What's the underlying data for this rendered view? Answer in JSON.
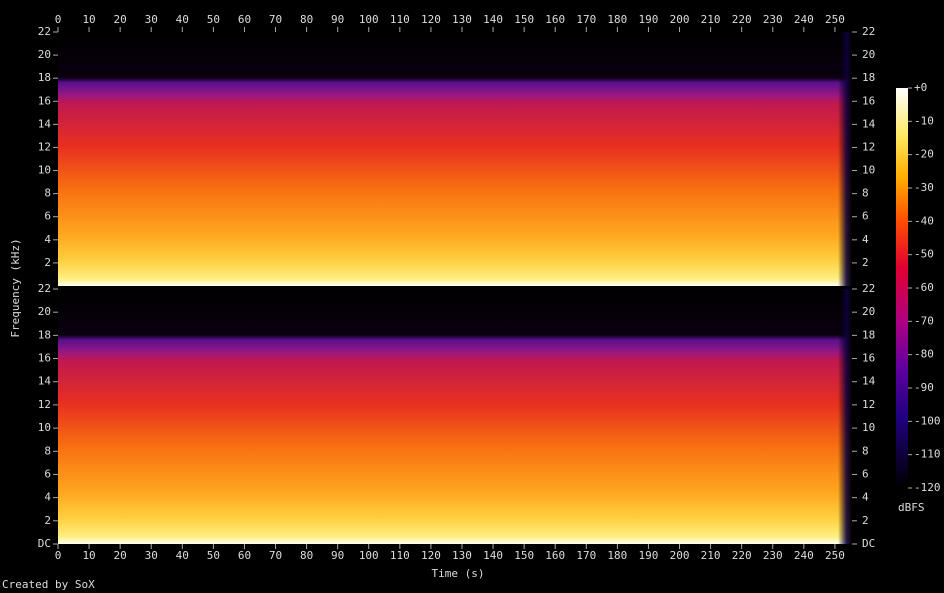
{
  "chart_data": {
    "type": "spectrogram",
    "x_label": "Time (s)",
    "y_label": "Frequency (kHz)",
    "credit": "Created by SoX",
    "xlim": [
      0,
      255.5
    ],
    "xticks": [
      0,
      10,
      20,
      30,
      40,
      50,
      60,
      70,
      80,
      90,
      100,
      110,
      120,
      130,
      140,
      150,
      160,
      170,
      180,
      190,
      200,
      210,
      220,
      230,
      240,
      250
    ],
    "channels": [
      {
        "ylim": [
          0,
          22
        ],
        "yticks": [
          2,
          4,
          6,
          8,
          10,
          12,
          14,
          16,
          18,
          20,
          22
        ]
      },
      {
        "ylim": [
          0,
          22
        ],
        "yticks": [
          {
            "value": 0,
            "label": "DC"
          },
          2,
          4,
          6,
          8,
          10,
          12,
          14,
          16,
          18,
          20,
          22
        ]
      }
    ],
    "colorbar": {
      "label": "dBFS",
      "lim": [
        -120,
        0
      ],
      "ticks": [
        {
          "value": 0,
          "label": "+0"
        },
        -10,
        -20,
        -30,
        -40,
        -50,
        -60,
        -70,
        -80,
        -90,
        -100,
        -110,
        -120
      ]
    }
  }
}
